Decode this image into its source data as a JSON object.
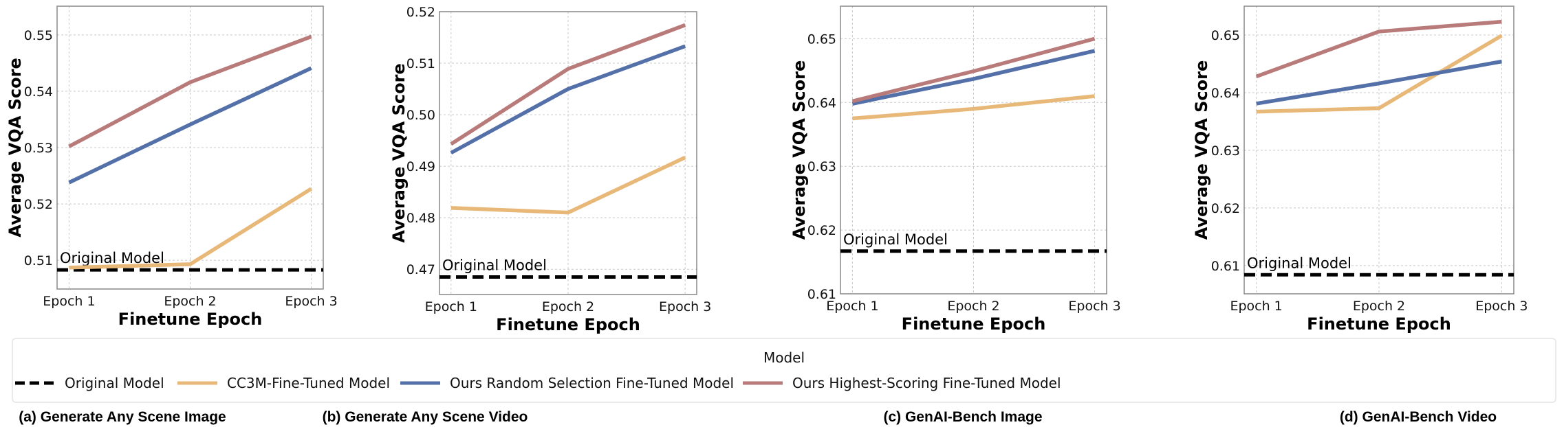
{
  "chart_data": [
    {
      "type": "line",
      "caption": "(a) Generate Any Scene Image",
      "categories": [
        "Epoch 1",
        "Epoch 2",
        "Epoch 3"
      ],
      "xlabel": "Finetune Epoch",
      "ylabel": "Average VQA Score",
      "ylim": [
        0.5049,
        0.5551
      ],
      "yticks": [
        0.51,
        0.52,
        0.53,
        0.54,
        0.55
      ],
      "yticklabels": [
        "0.51",
        "0.52",
        "0.53",
        "0.54",
        "0.55"
      ],
      "grid": true,
      "baseline": {
        "name": "Original Model",
        "value": 0.5083,
        "label": "Original Model"
      },
      "series": [
        {
          "name": "CC3M-Fine-Tuned Model",
          "values": [
            0.5087,
            0.5093,
            0.5227
          ]
        },
        {
          "name": "Ours Random Selection Fine-Tuned Model",
          "values": [
            0.5238,
            0.5341,
            0.5441
          ]
        },
        {
          "name": "Ours Highest-Scoring Fine-Tuned Model",
          "values": [
            0.5302,
            0.5416,
            0.5497
          ]
        }
      ]
    },
    {
      "type": "line",
      "caption": "(b) Generate Any Scene Video",
      "categories": [
        "Epoch 1",
        "Epoch 2",
        "Epoch 3"
      ],
      "xlabel": "Finetune Epoch",
      "ylabel": "Average VQA Score",
      "ylim": [
        0.4651,
        0.52
      ],
      "yticks": [
        0.47,
        0.48,
        0.49,
        0.5,
        0.51,
        0.52
      ],
      "yticklabels": [
        "0.47",
        "0.48",
        "0.49",
        "0.50",
        "0.51",
        "0.52"
      ],
      "grid": true,
      "baseline": {
        "name": "Original Model",
        "value": 0.4685,
        "label": "Original Model"
      },
      "series": [
        {
          "name": "CC3M-Fine-Tuned Model",
          "values": [
            0.4819,
            0.481,
            0.4917
          ]
        },
        {
          "name": "Ours Random Selection Fine-Tuned Model",
          "values": [
            0.4926,
            0.505,
            0.5133
          ]
        },
        {
          "name": "Ours Highest-Scoring Fine-Tuned Model",
          "values": [
            0.4943,
            0.5089,
            0.5174
          ]
        }
      ]
    },
    {
      "type": "line",
      "caption": "(c) GenAI-Bench Image",
      "categories": [
        "Epoch 1",
        "Epoch 2",
        "Epoch 3"
      ],
      "xlabel": "Finetune Epoch",
      "ylabel": "Average VQA Score",
      "ylim": [
        0.61,
        0.6551
      ],
      "yticks": [
        0.61,
        0.62,
        0.63,
        0.64,
        0.65
      ],
      "yticklabels": [
        "0.61",
        "0.62",
        "0.63",
        "0.64",
        "0.65"
      ],
      "grid": true,
      "baseline": {
        "name": "Original Model",
        "value": 0.6167,
        "label": "Original Model"
      },
      "series": [
        {
          "name": "CC3M-Fine-Tuned Model",
          "values": [
            0.6375,
            0.639,
            0.641
          ]
        },
        {
          "name": "Ours Random Selection Fine-Tuned Model",
          "values": [
            0.6398,
            0.6437,
            0.6481
          ]
        },
        {
          "name": "Ours Highest-Scoring Fine-Tuned Model",
          "values": [
            0.6402,
            0.6449,
            0.65
          ]
        }
      ]
    },
    {
      "type": "line",
      "caption": "(d) GenAI-Bench Video",
      "categories": [
        "Epoch 1",
        "Epoch 2",
        "Epoch 3"
      ],
      "xlabel": "Finetune Epoch",
      "ylabel": "Average VQA Score",
      "ylim": [
        0.6051,
        0.655
      ],
      "yticks": [
        0.61,
        0.62,
        0.63,
        0.64,
        0.65
      ],
      "yticklabels": [
        "0.61",
        "0.62",
        "0.63",
        "0.64",
        "0.65"
      ],
      "grid": true,
      "baseline": {
        "name": "Original Model",
        "value": 0.6084,
        "label": "Original Model"
      },
      "series": [
        {
          "name": "CC3M-Fine-Tuned Model",
          "values": [
            0.6367,
            0.6373,
            0.6499
          ]
        },
        {
          "name": "Ours Random Selection Fine-Tuned Model",
          "values": [
            0.6381,
            0.6416,
            0.6454
          ]
        },
        {
          "name": "Ours Highest-Scoring Fine-Tuned Model",
          "values": [
            0.6428,
            0.6506,
            0.6523
          ]
        }
      ]
    }
  ],
  "legend": {
    "title": "Model",
    "placement": "bottom",
    "entries": [
      {
        "label": "Original Model",
        "style": "dashed",
        "color": "#000000"
      },
      {
        "label": "CC3M-Fine-Tuned Model",
        "style": "solid",
        "color": "#e8b878"
      },
      {
        "label": "Ours Random Selection Fine-Tuned Model",
        "style": "solid",
        "color": "#5470a8"
      },
      {
        "label": "Ours Highest-Scoring Fine-Tuned Model",
        "style": "solid",
        "color": "#b97a7a"
      }
    ]
  }
}
